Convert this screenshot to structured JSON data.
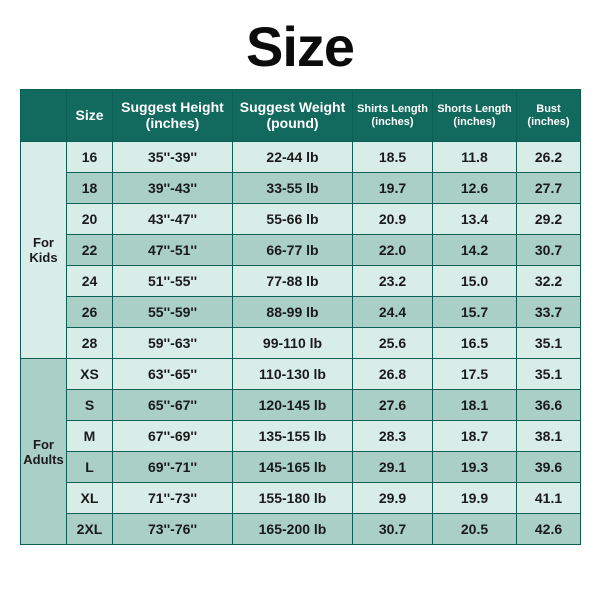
{
  "title": "Size",
  "title_fontsize": 56,
  "title_color": "#0b0b0b",
  "colors": {
    "border": "#0b5f54",
    "header_bg": "#126a5e",
    "header_text": "#ffffff",
    "row_odd": "#d9ede8",
    "row_even": "#a9cfc6",
    "side_odd": "#d9ede8",
    "side_even": "#a9cfc6",
    "cell_text": "#1a1a1a"
  },
  "fontsizes": {
    "header_big": 14,
    "header_small": 11,
    "cell": 14,
    "side": 13
  },
  "columns": [
    {
      "label": "Size",
      "sub": ""
    },
    {
      "label": "Suggest Height",
      "sub": "(inches)"
    },
    {
      "label": "Suggest Weight",
      "sub": "(pound)"
    },
    {
      "label": "Shirts Length",
      "sub": "(inches)"
    },
    {
      "label": "Shorts Length",
      "sub": "(inches)"
    },
    {
      "label": "Bust",
      "sub": "(inches)"
    }
  ],
  "groups": [
    {
      "label": "For\nKids",
      "bg": "#d9ede8",
      "rows": [
        {
          "size": "16",
          "h": "35''-39''",
          "w": "22-44 lb",
          "shirt": "18.5",
          "short": "11.8",
          "bust": "26.2"
        },
        {
          "size": "18",
          "h": "39''-43''",
          "w": "33-55 lb",
          "shirt": "19.7",
          "short": "12.6",
          "bust": "27.7"
        },
        {
          "size": "20",
          "h": "43''-47''",
          "w": "55-66 lb",
          "shirt": "20.9",
          "short": "13.4",
          "bust": "29.2"
        },
        {
          "size": "22",
          "h": "47''-51''",
          "w": "66-77 lb",
          "shirt": "22.0",
          "short": "14.2",
          "bust": "30.7"
        },
        {
          "size": "24",
          "h": "51''-55''",
          "w": "77-88 lb",
          "shirt": "23.2",
          "short": "15.0",
          "bust": "32.2"
        },
        {
          "size": "26",
          "h": "55''-59''",
          "w": "88-99 lb",
          "shirt": "24.4",
          "short": "15.7",
          "bust": "33.7"
        },
        {
          "size": "28",
          "h": "59''-63''",
          "w": "99-110 lb",
          "shirt": "25.6",
          "short": "16.5",
          "bust": "35.1"
        }
      ]
    },
    {
      "label": "For\nAdults",
      "bg": "#a9cfc6",
      "rows": [
        {
          "size": "XS",
          "h": "63''-65''",
          "w": "110-130 lb",
          "shirt": "26.8",
          "short": "17.5",
          "bust": "35.1"
        },
        {
          "size": "S",
          "h": "65''-67''",
          "w": "120-145 lb",
          "shirt": "27.6",
          "short": "18.1",
          "bust": "36.6"
        },
        {
          "size": "M",
          "h": "67''-69''",
          "w": "135-155 lb",
          "shirt": "28.3",
          "short": "18.7",
          "bust": "38.1"
        },
        {
          "size": "L",
          "h": "69''-71''",
          "w": "145-165 lb",
          "shirt": "29.1",
          "short": "19.3",
          "bust": "39.6"
        },
        {
          "size": "XL",
          "h": "71''-73''",
          "w": "155-180 lb",
          "shirt": "29.9",
          "short": "19.9",
          "bust": "41.1"
        },
        {
          "size": "2XL",
          "h": "73''-76''",
          "w": "165-200 lb",
          "shirt": "30.7",
          "short": "20.5",
          "bust": "42.6"
        }
      ]
    }
  ]
}
